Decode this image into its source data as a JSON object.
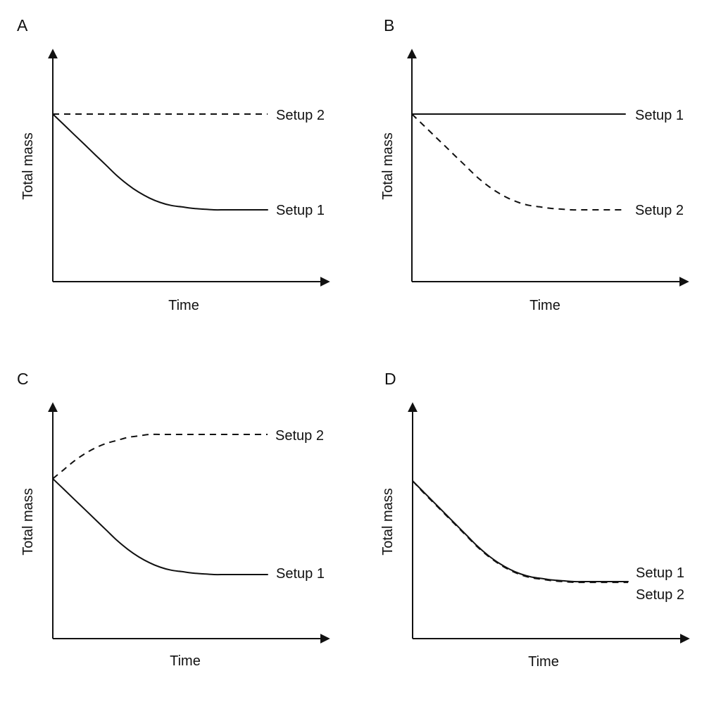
{
  "chart_data": [
    {
      "panel": "A",
      "type": "line",
      "xlabel": "Time",
      "ylabel": "Total mass",
      "series": [
        {
          "name": "Setup 1",
          "style": "solid",
          "x": [
            0,
            0.05,
            0.1,
            0.15,
            0.2,
            0.25,
            0.3,
            0.35,
            0.4,
            0.45,
            0.5,
            0.55,
            0.6,
            0.65,
            0.7,
            0.75,
            0.8,
            0.85,
            0.9,
            0.95,
            1.0
          ],
          "y": [
            1.0,
            0.93,
            0.86,
            0.79,
            0.72,
            0.65,
            0.58,
            0.52,
            0.47,
            0.43,
            0.4,
            0.38,
            0.37,
            0.36,
            0.355,
            0.35,
            0.35,
            0.35,
            0.35,
            0.35,
            0.35
          ]
        },
        {
          "name": "Setup 2",
          "style": "dashed",
          "x": [
            0,
            1.0
          ],
          "y": [
            1.0,
            1.0
          ]
        }
      ]
    },
    {
      "panel": "B",
      "type": "line",
      "xlabel": "Time",
      "ylabel": "Total mass",
      "series": [
        {
          "name": "Setup 1",
          "style": "solid",
          "x": [
            0,
            1.0
          ],
          "y": [
            1.0,
            1.0
          ]
        },
        {
          "name": "Setup 2",
          "style": "dashed",
          "x": [
            0,
            0.05,
            0.1,
            0.15,
            0.2,
            0.25,
            0.3,
            0.35,
            0.4,
            0.45,
            0.5,
            0.55,
            0.6,
            0.65,
            0.7,
            0.75,
            0.8,
            0.85,
            0.9,
            0.95,
            1.0
          ],
          "y": [
            1.0,
            0.93,
            0.86,
            0.79,
            0.72,
            0.65,
            0.58,
            0.52,
            0.47,
            0.43,
            0.4,
            0.38,
            0.37,
            0.36,
            0.355,
            0.35,
            0.35,
            0.35,
            0.35,
            0.35,
            0.35
          ]
        }
      ]
    },
    {
      "panel": "C",
      "type": "line",
      "xlabel": "Time",
      "ylabel": "Total mass",
      "series": [
        {
          "name": "Setup 1",
          "style": "solid",
          "x": [
            0,
            0.05,
            0.1,
            0.15,
            0.2,
            0.25,
            0.3,
            0.35,
            0.4,
            0.45,
            0.5,
            0.55,
            0.6,
            0.65,
            0.7,
            0.75,
            0.8,
            0.85,
            0.9,
            0.95,
            1.0
          ],
          "y": [
            1.0,
            0.93,
            0.86,
            0.79,
            0.72,
            0.65,
            0.58,
            0.52,
            0.47,
            0.43,
            0.4,
            0.38,
            0.37,
            0.36,
            0.355,
            0.35,
            0.35,
            0.35,
            0.35,
            0.35,
            0.35
          ]
        },
        {
          "name": "Setup 2",
          "style": "dashed",
          "x": [
            0,
            0.05,
            0.1,
            0.15,
            0.2,
            0.25,
            0.3,
            0.35,
            0.4,
            0.45,
            0.5,
            0.55,
            0.6,
            0.65,
            0.7,
            0.75,
            0.8,
            0.85,
            0.9,
            0.95,
            1.0
          ],
          "y": [
            1.0,
            1.06,
            1.12,
            1.17,
            1.21,
            1.24,
            1.26,
            1.28,
            1.29,
            1.3,
            1.3,
            1.3,
            1.3,
            1.3,
            1.3,
            1.3,
            1.3,
            1.3,
            1.3,
            1.3,
            1.3
          ]
        }
      ]
    },
    {
      "panel": "D",
      "type": "line",
      "xlabel": "Time",
      "ylabel": "Total mass",
      "series": [
        {
          "name": "Setup 1",
          "style": "solid",
          "x": [
            0,
            0.05,
            0.1,
            0.15,
            0.2,
            0.25,
            0.3,
            0.35,
            0.4,
            0.45,
            0.5,
            0.55,
            0.6,
            0.65,
            0.7,
            0.75,
            0.8,
            0.85,
            0.9,
            0.95,
            1.0
          ],
          "y": [
            1.0,
            0.93,
            0.86,
            0.79,
            0.72,
            0.65,
            0.58,
            0.52,
            0.47,
            0.43,
            0.4,
            0.38,
            0.37,
            0.36,
            0.355,
            0.35,
            0.35,
            0.35,
            0.35,
            0.35,
            0.35
          ]
        },
        {
          "name": "Setup 2",
          "style": "dashed",
          "x": [
            0,
            0.05,
            0.1,
            0.15,
            0.2,
            0.25,
            0.3,
            0.35,
            0.4,
            0.45,
            0.5,
            0.55,
            0.6,
            0.65,
            0.7,
            0.75,
            0.8,
            0.85,
            0.9,
            0.95,
            1.0
          ],
          "y": [
            1.0,
            0.925,
            0.855,
            0.785,
            0.715,
            0.645,
            0.575,
            0.515,
            0.465,
            0.425,
            0.395,
            0.375,
            0.365,
            0.355,
            0.35,
            0.345,
            0.345,
            0.345,
            0.345,
            0.345,
            0.345
          ]
        }
      ]
    }
  ]
}
